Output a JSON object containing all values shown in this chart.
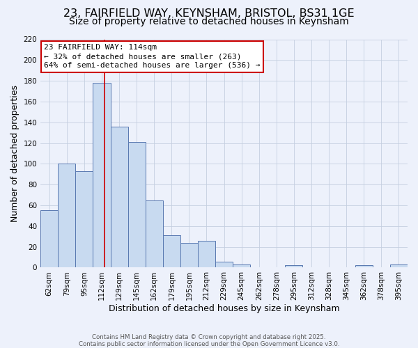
{
  "title_line1": "23, FAIRFIELD WAY, KEYNSHAM, BRISTOL, BS31 1GE",
  "title_line2": "Size of property relative to detached houses in Keynsham",
  "xlabel": "Distribution of detached houses by size in Keynsham",
  "ylabel": "Number of detached properties",
  "footer_line1": "Contains HM Land Registry data © Crown copyright and database right 2025.",
  "footer_line2": "Contains public sector information licensed under the Open Government Licence v3.0.",
  "categories": [
    "62sqm",
    "79sqm",
    "95sqm",
    "112sqm",
    "129sqm",
    "145sqm",
    "162sqm",
    "179sqm",
    "195sqm",
    "212sqm",
    "229sqm",
    "245sqm",
    "262sqm",
    "278sqm",
    "295sqm",
    "312sqm",
    "328sqm",
    "345sqm",
    "362sqm",
    "378sqm",
    "395sqm"
  ],
  "values": [
    55,
    100,
    93,
    178,
    136,
    121,
    65,
    31,
    24,
    26,
    6,
    3,
    0,
    0,
    2,
    0,
    0,
    0,
    2,
    0,
    3
  ],
  "bar_color": "#c8daf0",
  "bar_edge_color": "#5878b0",
  "background_color": "#edf1fb",
  "plot_bg_color": "#edf1fb",
  "grid_color": "#c5cfe0",
  "ylim_max": 220,
  "ytick_step": 20,
  "red_line_x": 3.18,
  "annotation_title": "23 FAIRFIELD WAY: 114sqm",
  "annotation_line2": "← 32% of detached houses are smaller (263)",
  "annotation_line3": "64% of semi-detached houses are larger (536) →",
  "annotation_box_facecolor": "#ffffff",
  "annotation_box_edgecolor": "#cc0000",
  "red_line_color": "#cc0000",
  "title_fontsize": 11.5,
  "subtitle_fontsize": 10,
  "axis_label_fontsize": 9,
  "tick_fontsize": 7.5,
  "annotation_fontsize": 8,
  "footer_fontsize": 6.2
}
